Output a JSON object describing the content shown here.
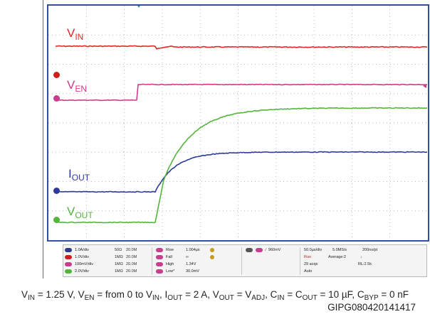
{
  "traces": [
    {
      "name": "V",
      "sub": "IN",
      "color": "#e02828"
    },
    {
      "name": "V",
      "sub": "EN",
      "color": "#d23a8c"
    },
    {
      "name": "I",
      "sub": "OUT",
      "color": "#2c3a9c"
    },
    {
      "name": "V",
      "sub": "OUT",
      "color": "#55b43a"
    }
  ],
  "channels": [
    {
      "scale": "1.0A/div",
      "imp": "50Ω",
      "bw": "20.0M"
    },
    {
      "scale": "1.0V/div",
      "imp": "1MΩ",
      "bw": "20.0M"
    },
    {
      "scale": "100mV/div",
      "imp": "1MΩ",
      "bw": "20.0M"
    },
    {
      "scale": "2.0V/div",
      "imp": "1MΩ",
      "bw": "20.0M"
    }
  ],
  "measurements": [
    {
      "label": "Rise",
      "value": "1.004µs"
    },
    {
      "label": "Fall",
      "value": "∞"
    },
    {
      "label": "High",
      "value": "1.34V"
    },
    {
      "label": "Low*",
      "value": "30.0mV"
    }
  ],
  "trigger": {
    "level": "960mV"
  },
  "acquisition": {
    "timebase": "50.0µs/div",
    "sample_rate": "5.0MS/s",
    "resolution": "200ns/pt",
    "state": "Run",
    "mode": "Average:2",
    "acqs": "29 acqs",
    "record": "RL:2.5k",
    "trigger_mode": "Auto"
  },
  "caption": {
    "parts": [
      {
        "t": "V"
      },
      {
        "s": "IN"
      },
      {
        "t": " = 1.25 V, V"
      },
      {
        "s": "EN"
      },
      {
        "t": " = from 0 to V"
      },
      {
        "s": "IN"
      },
      {
        "t": ", I"
      },
      {
        "s": "OUT"
      },
      {
        "t": " = 2 A, V"
      },
      {
        "s": "OUT"
      },
      {
        "t": " = V"
      },
      {
        "s": "ADJ"
      },
      {
        "t": ", C"
      },
      {
        "s": "IN"
      },
      {
        "t": " = C"
      },
      {
        "s": "OUT"
      },
      {
        "t": " = 10 µF, C"
      },
      {
        "s": "BYP"
      },
      {
        "t": " = 0 nF"
      }
    ],
    "figure_id": "GIPG080420141417"
  }
}
